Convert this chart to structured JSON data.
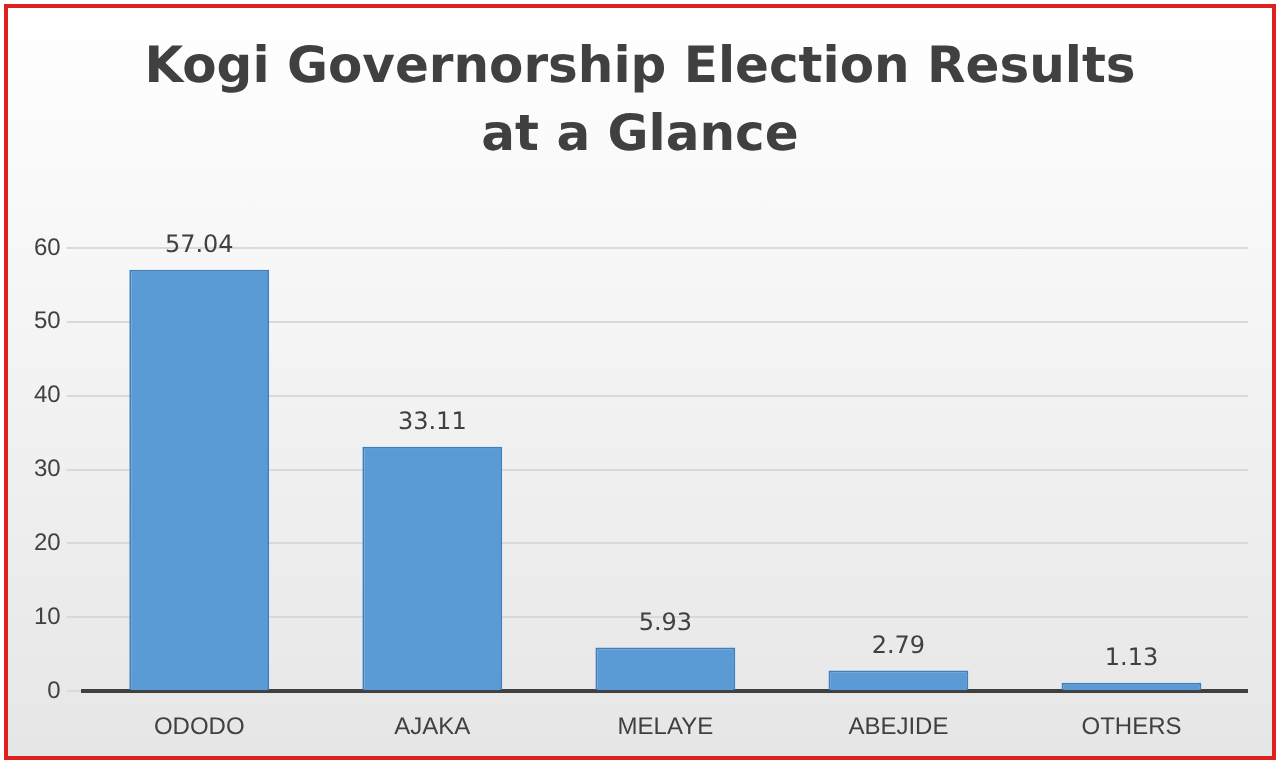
{
  "chart_data": {
    "type": "bar",
    "title": "Kogi Governorship Election Results at a Glance",
    "categories": [
      "ODODO",
      "AJAKA",
      "MELAYE",
      "ABEJIDE",
      "OTHERS"
    ],
    "values": [
      57.04,
      33.11,
      5.93,
      2.79,
      1.13
    ],
    "color": "#5b9bd5",
    "ylim": [
      0,
      60
    ],
    "yticks": [
      0,
      10,
      20,
      30,
      40,
      50,
      60
    ],
    "grid": "y",
    "data_labels": true
  }
}
